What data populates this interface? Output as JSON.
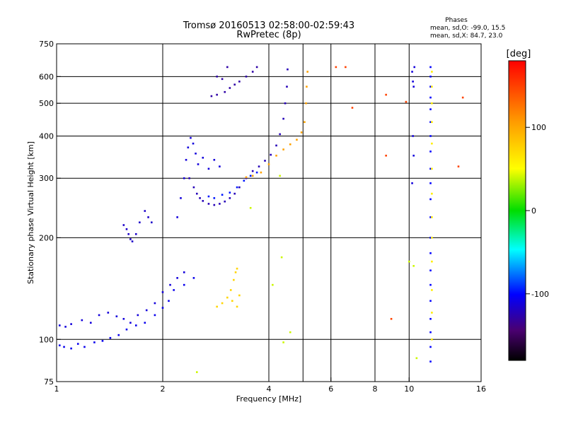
{
  "chart_data": {
    "type": "scatter",
    "title": "Tromsø 20160513 02:58:00-02:59:43",
    "subtitle": "RwPretec (8p)",
    "xlabel": "Frequency [MHz]",
    "ylabel": "Stationary phase Virtual Height [km]",
    "x_scale": "log",
    "y_scale": "log",
    "xlim": [
      1,
      16
    ],
    "ylim": [
      75,
      750
    ],
    "x_ticks": [
      1,
      2,
      4,
      6,
      8,
      10,
      16
    ],
    "y_ticks": [
      75,
      100,
      200,
      300,
      400,
      500,
      600,
      750
    ],
    "x_grid_lines": [
      2,
      4,
      5,
      6,
      8,
      10
    ],
    "y_grid_lines": [
      100,
      200,
      300,
      400,
      500,
      600
    ],
    "grid": true,
    "phases_box": {
      "title": "Phases",
      "line_o": "mean, sd,O: -99.0, 15.5",
      "line_x": "mean, sd,X:  84.7, 23.0"
    },
    "colorbar": {
      "label": "[deg]",
      "range": [
        -180,
        180
      ],
      "ticks": [
        100,
        0,
        -100
      ],
      "colormap": "rainbow"
    },
    "series": [
      {
        "points": [
          [
            1.02,
            96
          ],
          [
            1.05,
            95
          ],
          [
            1.1,
            94
          ],
          [
            1.15,
            97
          ],
          [
            1.2,
            95
          ],
          [
            1.28,
            98
          ],
          [
            1.35,
            99
          ],
          [
            1.42,
            101
          ],
          [
            1.5,
            103
          ],
          [
            1.58,
            107
          ],
          [
            1.68,
            110
          ],
          [
            1.78,
            112
          ],
          [
            1.9,
            118
          ],
          [
            2.0,
            124
          ],
          [
            2.08,
            130
          ],
          [
            2.15,
            140
          ],
          [
            2.3,
            145
          ],
          [
            2.45,
            152
          ]
        ],
        "phase": -105
      },
      {
        "points": [
          [
            1.02,
            110
          ],
          [
            1.06,
            109
          ],
          [
            1.1,
            111
          ],
          [
            1.18,
            114
          ],
          [
            1.25,
            112
          ],
          [
            1.32,
            118
          ],
          [
            1.4,
            120
          ],
          [
            1.48,
            117
          ],
          [
            1.55,
            115
          ],
          [
            1.62,
            112
          ],
          [
            1.7,
            118
          ],
          [
            1.8,
            122
          ],
          [
            1.9,
            128
          ],
          [
            2.0,
            138
          ],
          [
            2.1,
            145
          ],
          [
            2.2,
            152
          ],
          [
            2.3,
            158
          ]
        ],
        "phase": -110
      },
      {
        "points": [
          [
            1.55,
            218
          ],
          [
            1.58,
            212
          ],
          [
            1.6,
            205
          ],
          [
            1.62,
            198
          ],
          [
            1.64,
            195
          ],
          [
            1.68,
            205
          ],
          [
            1.72,
            222
          ],
          [
            1.78,
            240
          ],
          [
            1.82,
            230
          ],
          [
            1.86,
            222
          ]
        ],
        "phase": -115
      },
      {
        "points": [
          [
            2.2,
            230
          ],
          [
            2.25,
            262
          ],
          [
            2.3,
            300
          ],
          [
            2.33,
            340
          ],
          [
            2.36,
            370
          ],
          [
            2.4,
            395
          ],
          [
            2.44,
            380
          ],
          [
            2.48,
            355
          ],
          [
            2.52,
            330
          ],
          [
            2.6,
            345
          ],
          [
            2.7,
            320
          ],
          [
            2.8,
            340
          ],
          [
            2.9,
            325
          ]
        ],
        "phase": -110
      },
      {
        "points": [
          [
            2.38,
            300
          ],
          [
            2.45,
            282
          ],
          [
            2.5,
            270
          ],
          [
            2.55,
            262
          ],
          [
            2.6,
            257
          ],
          [
            2.7,
            252
          ],
          [
            2.8,
            250
          ],
          [
            2.9,
            252
          ],
          [
            3.0,
            256
          ],
          [
            3.1,
            262
          ],
          [
            3.2,
            270
          ],
          [
            3.3,
            282
          ],
          [
            3.45,
            300
          ],
          [
            3.6,
            315
          ],
          [
            3.75,
            325
          ],
          [
            3.9,
            338
          ],
          [
            4.05,
            352
          ],
          [
            4.2,
            375
          ],
          [
            4.3,
            405
          ],
          [
            4.4,
            450
          ],
          [
            4.45,
            500
          ],
          [
            4.5,
            560
          ],
          [
            4.52,
            630
          ]
        ],
        "phase": -120
      },
      {
        "points": [
          [
            2.7,
            265
          ],
          [
            2.8,
            262
          ],
          [
            2.95,
            268
          ],
          [
            3.1,
            272
          ],
          [
            3.25,
            282
          ],
          [
            3.4,
            295
          ],
          [
            3.55,
            305
          ],
          [
            3.7,
            312
          ]
        ],
        "phase": -95
      },
      {
        "points": [
          [
            3.45,
            302
          ],
          [
            3.6,
            305
          ],
          [
            3.8,
            312
          ],
          [
            4.0,
            330
          ],
          [
            4.2,
            350
          ],
          [
            4.4,
            365
          ],
          [
            4.6,
            378
          ],
          [
            4.8,
            390
          ],
          [
            4.95,
            410
          ],
          [
            5.05,
            440
          ],
          [
            5.1,
            500
          ],
          [
            5.12,
            560
          ],
          [
            5.15,
            620
          ]
        ],
        "phase": 105
      },
      {
        "points": [
          [
            2.85,
            125
          ],
          [
            2.95,
            128
          ],
          [
            3.05,
            133
          ],
          [
            3.12,
            140
          ],
          [
            3.18,
            150
          ],
          [
            3.22,
            158
          ],
          [
            3.25,
            162
          ],
          [
            3.15,
            130
          ],
          [
            3.25,
            125
          ],
          [
            3.3,
            135
          ]
        ],
        "phase": 75
      },
      {
        "points": [
          [
            2.75,
            525
          ],
          [
            2.85,
            530
          ],
          [
            3.0,
            540
          ],
          [
            3.1,
            555
          ],
          [
            3.2,
            568
          ],
          [
            3.3,
            580
          ],
          [
            3.45,
            600
          ],
          [
            3.6,
            620
          ],
          [
            3.7,
            640
          ],
          [
            2.85,
            600
          ],
          [
            2.95,
            590
          ],
          [
            3.05,
            640
          ]
        ],
        "phase": -125
      },
      {
        "points": [
          [
            10.2,
            620
          ],
          [
            10.25,
            580
          ],
          [
            10.3,
            560
          ],
          [
            10.35,
            640
          ],
          [
            10.25,
            400
          ],
          [
            10.3,
            350
          ],
          [
            10.2,
            290
          ]
        ],
        "phase": -110
      },
      {
        "points": [
          [
            11.5,
            640
          ],
          [
            11.5,
            600
          ],
          [
            11.5,
            560
          ],
          [
            11.5,
            520
          ],
          [
            11.5,
            480
          ],
          [
            11.5,
            440
          ],
          [
            11.5,
            400
          ],
          [
            11.5,
            360
          ],
          [
            11.5,
            320
          ],
          [
            11.5,
            290
          ],
          [
            11.5,
            260
          ],
          [
            11.5,
            230
          ],
          [
            11.5,
            200
          ],
          [
            11.5,
            180
          ],
          [
            11.5,
            160
          ],
          [
            11.5,
            145
          ],
          [
            11.5,
            130
          ],
          [
            11.5,
            115
          ],
          [
            11.5,
            105
          ],
          [
            11.5,
            95
          ],
          [
            11.5,
            86
          ]
        ],
        "phase": -100
      },
      {
        "points": [
          [
            11.6,
            620
          ],
          [
            11.6,
            560
          ],
          [
            11.6,
            500
          ],
          [
            11.6,
            440
          ],
          [
            11.6,
            380
          ],
          [
            11.6,
            320
          ],
          [
            11.6,
            270
          ],
          [
            11.6,
            230
          ],
          [
            11.6,
            200
          ],
          [
            11.6,
            170
          ],
          [
            11.6,
            140
          ],
          [
            11.6,
            120
          ],
          [
            11.6,
            100
          ]
        ],
        "phase": 60
      },
      {
        "points": [
          [
            6.2,
            640
          ],
          [
            6.6,
            640
          ],
          [
            8.6,
            530
          ],
          [
            9.8,
            505
          ],
          [
            8.9,
            115
          ],
          [
            6.9,
            485
          ],
          [
            8.6,
            350
          ],
          [
            13.8,
            325
          ],
          [
            14.2,
            520
          ]
        ],
        "phase": 150
      },
      {
        "points": [
          [
            4.3,
            305
          ],
          [
            4.35,
            175
          ],
          [
            4.1,
            145
          ],
          [
            3.55,
            245
          ],
          [
            4.6,
            105
          ],
          [
            2.5,
            80
          ],
          [
            4.4,
            98
          ],
          [
            10.5,
            88
          ],
          [
            10.0,
            170
          ],
          [
            10.3,
            165
          ]
        ],
        "phase": 40
      }
    ]
  }
}
